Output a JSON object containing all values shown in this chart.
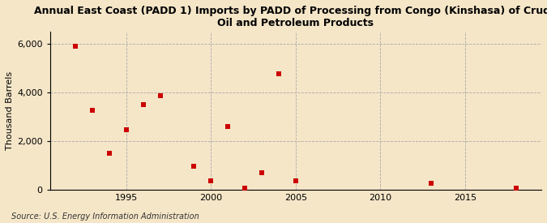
{
  "title": "Annual East Coast (PADD 1) Imports by PADD of Processing from Congo (Kinshasa) of Crude\nOil and Petroleum Products",
  "ylabel": "Thousand Barrels",
  "source": "Source: U.S. Energy Information Administration",
  "background_color": "#f5e6c8",
  "scatter_color": "#cc0000",
  "marker": "s",
  "marker_size": 4,
  "xlim": [
    1990.5,
    2019.5
  ],
  "ylim": [
    0,
    6500
  ],
  "yticks": [
    0,
    2000,
    4000,
    6000
  ],
  "ytick_labels": [
    "0",
    "2,000",
    "4,000",
    "6,000"
  ],
  "xticks": [
    1995,
    2000,
    2005,
    2010,
    2015
  ],
  "data_x": [
    1992,
    1993,
    1994,
    1995,
    1996,
    1997,
    1999,
    2000,
    2001,
    2002,
    2003,
    2004,
    2005,
    2013,
    2018
  ],
  "data_y": [
    5900,
    3250,
    1500,
    2450,
    3500,
    3850,
    950,
    350,
    2600,
    50,
    700,
    4750,
    350,
    275,
    50
  ]
}
